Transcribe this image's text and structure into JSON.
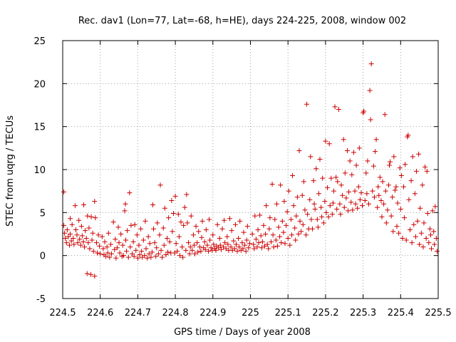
{
  "chart_data": {
    "type": "scatter",
    "title": "Rec. dav1 (Lon=77, Lat=-68, h=HE), days 224-225, 2008, window 002",
    "xlabel": "GPS time / Days of year 2008",
    "ylabel": "STEC from uqrg / TECUs",
    "xlim": [
      224.5,
      225.5
    ],
    "ylim": [
      -5,
      25
    ],
    "xticks": [
      "224.5",
      "224.6",
      "224.7",
      "224.8",
      "224.9",
      "225",
      "225.1",
      "225.2",
      "225.3",
      "225.4",
      "225.5"
    ],
    "yticks": [
      "-5",
      "0",
      "5",
      "10",
      "15",
      "20",
      "25"
    ],
    "grid": true,
    "marker": "+",
    "series_color": "#cc0000",
    "points": [
      [
        224.503,
        7.4
      ],
      [
        224.503,
        3.5
      ],
      [
        224.505,
        2.6
      ],
      [
        224.507,
        2.0
      ],
      [
        224.51,
        1.5
      ],
      [
        224.512,
        3.0
      ],
      [
        224.515,
        2.2
      ],
      [
        224.518,
        1.2
      ],
      [
        224.52,
        4.3
      ],
      [
        224.52,
        2.5
      ],
      [
        224.523,
        1.7
      ],
      [
        224.525,
        3.6
      ],
      [
        224.528,
        2.0
      ],
      [
        224.53,
        1.3
      ],
      [
        224.533,
        5.8
      ],
      [
        224.535,
        3.0
      ],
      [
        224.538,
        2.4
      ],
      [
        224.54,
        1.5
      ],
      [
        224.543,
        4.1
      ],
      [
        224.545,
        1.9
      ],
      [
        224.548,
        1.2
      ],
      [
        224.55,
        3.4
      ],
      [
        224.552,
        2.3
      ],
      [
        224.555,
        1.6
      ],
      [
        224.556,
        5.9
      ],
      [
        224.558,
        1.0
      ],
      [
        224.56,
        2.9
      ],
      [
        224.563,
        2.0
      ],
      [
        224.565,
        -2.1
      ],
      [
        224.566,
        4.6
      ],
      [
        224.568,
        1.5
      ],
      [
        224.57,
        3.2
      ],
      [
        224.572,
        0.8
      ],
      [
        224.575,
        -2.2
      ],
      [
        224.576,
        4.5
      ],
      [
        224.578,
        1.8
      ],
      [
        224.58,
        2.6
      ],
      [
        224.582,
        0.5
      ],
      [
        224.585,
        -2.4
      ],
      [
        224.585,
        6.3
      ],
      [
        224.587,
        4.4
      ],
      [
        224.59,
        1.5
      ],
      [
        224.592,
        0.3
      ],
      [
        224.595,
        2.4
      ],
      [
        224.598,
        1.1
      ],
      [
        224.6,
        0.2
      ],
      [
        224.605,
        2.2
      ],
      [
        224.608,
        0.8
      ],
      [
        224.61,
        0.1
      ],
      [
        224.612,
        1.6
      ],
      [
        224.615,
        -0.1
      ],
      [
        224.618,
        1.0
      ],
      [
        224.62,
        0.3
      ],
      [
        224.622,
        2.6
      ],
      [
        224.625,
        -0.2
      ],
      [
        224.628,
        1.3
      ],
      [
        224.63,
        0.2
      ],
      [
        224.635,
        3.9
      ],
      [
        224.638,
        0.7
      ],
      [
        224.64,
        1.9
      ],
      [
        224.642,
        -0.3
      ],
      [
        224.645,
        0.9
      ],
      [
        224.648,
        3.3
      ],
      [
        224.65,
        1.5
      ],
      [
        224.652,
        0.3
      ],
      [
        224.655,
        2.5
      ],
      [
        224.658,
        -0.1
      ],
      [
        224.66,
        1.2
      ],
      [
        224.662,
        0.0
      ],
      [
        224.665,
        5.2
      ],
      [
        224.667,
        6.0
      ],
      [
        224.668,
        1.8
      ],
      [
        224.67,
        0.5
      ],
      [
        224.672,
        2.9
      ],
      [
        224.675,
        -0.2
      ],
      [
        224.678,
        7.3
      ],
      [
        224.68,
        1.0
      ],
      [
        224.682,
        3.5
      ],
      [
        224.685,
        0.2
      ],
      [
        224.688,
        1.6
      ],
      [
        224.69,
        -0.1
      ],
      [
        224.692,
        3.6
      ],
      [
        224.695,
        0.6
      ],
      [
        224.698,
        2.4
      ],
      [
        224.7,
        -0.3
      ],
      [
        224.703,
        1.2
      ],
      [
        224.705,
        0.1
      ],
      [
        224.708,
        3.1
      ],
      [
        224.71,
        0.5
      ],
      [
        224.712,
        -0.2
      ],
      [
        224.715,
        1.8
      ],
      [
        224.718,
        0.0
      ],
      [
        224.72,
        4.0
      ],
      [
        224.722,
        0.8
      ],
      [
        224.725,
        -0.3
      ],
      [
        224.728,
        2.2
      ],
      [
        224.73,
        0.2
      ],
      [
        224.732,
        1.4
      ],
      [
        224.735,
        -0.2
      ],
      [
        224.738,
        0.4
      ],
      [
        224.74,
        5.9
      ],
      [
        224.742,
        3.1
      ],
      [
        224.745,
        1.5
      ],
      [
        224.748,
        -0.1
      ],
      [
        224.75,
        0.9
      ],
      [
        224.752,
        3.8
      ],
      [
        224.755,
        0.2
      ],
      [
        224.758,
        2.4
      ],
      [
        224.76,
        8.2
      ],
      [
        224.762,
        0.6
      ],
      [
        224.765,
        -0.2
      ],
      [
        224.768,
        3.2
      ],
      [
        224.77,
        1.2
      ],
      [
        224.772,
        5.5
      ],
      [
        224.775,
        0.1
      ],
      [
        224.778,
        2.0
      ],
      [
        224.78,
        0.4
      ],
      [
        224.782,
        4.4
      ],
      [
        224.785,
        1.6
      ],
      [
        224.788,
        0.3
      ],
      [
        224.79,
        6.4
      ],
      [
        224.792,
        2.8
      ],
      [
        224.795,
        4.9
      ],
      [
        224.798,
        0.3
      ],
      [
        224.8,
        6.9
      ],
      [
        224.802,
        1.4
      ],
      [
        224.805,
        0.5
      ],
      [
        224.808,
        4.8
      ],
      [
        224.81,
        2.2
      ],
      [
        224.812,
        0.0
      ],
      [
        224.815,
        3.9
      ],
      [
        224.818,
        1.0
      ],
      [
        224.82,
        -0.2
      ],
      [
        224.822,
        3.5
      ],
      [
        224.825,
        5.6
      ],
      [
        224.828,
        0.6
      ],
      [
        224.83,
        7.1
      ],
      [
        224.832,
        3.8
      ],
      [
        224.835,
        1.5
      ],
      [
        224.838,
        0.2
      ],
      [
        224.84,
        1.0
      ],
      [
        224.842,
        4.6
      ],
      [
        224.845,
        0.6
      ],
      [
        224.848,
        2.4
      ],
      [
        224.85,
        1.2
      ],
      [
        224.852,
        0.2
      ],
      [
        224.855,
        3.4
      ],
      [
        224.858,
        1.5
      ],
      [
        224.86,
        0.4
      ],
      [
        224.862,
        2.8
      ],
      [
        224.865,
        1.0
      ],
      [
        224.868,
        0.5
      ],
      [
        224.87,
        2.1
      ],
      [
        224.872,
        4.0
      ],
      [
        224.875,
        0.9
      ],
      [
        224.878,
        1.6
      ],
      [
        224.88,
        0.7
      ],
      [
        224.882,
        3.0
      ],
      [
        224.885,
        1.2
      ],
      [
        224.888,
        0.5
      ],
      [
        224.89,
        4.2
      ],
      [
        224.892,
        1.8
      ],
      [
        224.895,
        0.9
      ],
      [
        224.898,
        0.6
      ],
      [
        224.9,
        2.4
      ],
      [
        224.902,
        1.3
      ],
      [
        224.905,
        0.8
      ],
      [
        224.908,
        0.6
      ],
      [
        224.91,
        1.1
      ],
      [
        224.912,
        3.6
      ],
      [
        224.915,
        0.9
      ],
      [
        224.918,
        2.0
      ],
      [
        224.92,
        1.2
      ],
      [
        224.922,
        0.7
      ],
      [
        224.925,
        3.1
      ],
      [
        224.928,
        1.0
      ],
      [
        224.93,
        4.1
      ],
      [
        224.932,
        1.5
      ],
      [
        224.935,
        0.8
      ],
      [
        224.938,
        2.2
      ],
      [
        224.94,
        1.3
      ],
      [
        224.942,
        0.6
      ],
      [
        224.945,
        4.3
      ],
      [
        224.948,
        1.0
      ],
      [
        224.95,
        2.9
      ],
      [
        224.952,
        0.6
      ],
      [
        224.955,
        1.7
      ],
      [
        224.958,
        0.8
      ],
      [
        224.96,
        3.6
      ],
      [
        224.962,
        1.3
      ],
      [
        224.965,
        0.5
      ],
      [
        224.968,
        2.0
      ],
      [
        224.97,
        1.0
      ],
      [
        224.972,
        4.0
      ],
      [
        224.975,
        0.6
      ],
      [
        224.978,
        1.5
      ],
      [
        224.98,
        0.8
      ],
      [
        224.982,
        2.7
      ],
      [
        224.985,
        1.2
      ],
      [
        224.988,
        0.5
      ],
      [
        224.99,
        1.8
      ],
      [
        224.992,
        3.4
      ],
      [
        224.995,
        0.9
      ],
      [
        224.998,
        1.4
      ],
      [
        225.005,
        2.5
      ],
      [
        225.008,
        1.3
      ],
      [
        225.01,
        0.8
      ],
      [
        225.012,
        4.6
      ],
      [
        225.015,
        1.9
      ],
      [
        225.018,
        1.0
      ],
      [
        225.02,
        3.0
      ],
      [
        225.022,
        1.5
      ],
      [
        225.025,
        4.7
      ],
      [
        225.028,
        2.3
      ],
      [
        225.03,
        0.9
      ],
      [
        225.032,
        1.6
      ],
      [
        225.035,
        3.5
      ],
      [
        225.038,
        1.1
      ],
      [
        225.04,
        2.5
      ],
      [
        225.042,
        5.8
      ],
      [
        225.045,
        1.3
      ],
      [
        225.048,
        0.8
      ],
      [
        225.05,
        3.1
      ],
      [
        225.052,
        4.4
      ],
      [
        225.055,
        1.6
      ],
      [
        225.058,
        8.3
      ],
      [
        225.06,
        2.4
      ],
      [
        225.062,
        1.0
      ],
      [
        225.065,
        4.2
      ],
      [
        225.068,
        1.8
      ],
      [
        225.07,
        6.0
      ],
      [
        225.072,
        1.1
      ],
      [
        225.075,
        3.3
      ],
      [
        225.078,
        2.2
      ],
      [
        225.08,
        8.2
      ],
      [
        225.082,
        1.5
      ],
      [
        225.085,
        4.0
      ],
      [
        225.088,
        2.7
      ],
      [
        225.09,
        6.3
      ],
      [
        225.092,
        1.4
      ],
      [
        225.095,
        3.5
      ],
      [
        225.098,
        5.1
      ],
      [
        225.1,
        2.0
      ],
      [
        225.102,
        7.5
      ],
      [
        225.105,
        1.2
      ],
      [
        225.108,
        4.2
      ],
      [
        225.11,
        2.4
      ],
      [
        225.112,
        9.3
      ],
      [
        225.115,
        5.8
      ],
      [
        225.118,
        3.2
      ],
      [
        225.12,
        1.8
      ],
      [
        225.122,
        4.6
      ],
      [
        225.125,
        6.8
      ],
      [
        225.128,
        2.5
      ],
      [
        225.13,
        12.2
      ],
      [
        225.132,
        4.0
      ],
      [
        225.135,
        2.8
      ],
      [
        225.138,
        7.0
      ],
      [
        225.14,
        3.6
      ],
      [
        225.142,
        8.6
      ],
      [
        225.145,
        5.3
      ],
      [
        225.148,
        2.4
      ],
      [
        225.15,
        17.6
      ],
      [
        225.152,
        4.8
      ],
      [
        225.155,
        3.1
      ],
      [
        225.158,
        6.5
      ],
      [
        225.16,
        11.5
      ],
      [
        225.162,
        4.2
      ],
      [
        225.165,
        3.1
      ],
      [
        225.168,
        8.7
      ],
      [
        225.17,
        6.0
      ],
      [
        225.172,
        5.4
      ],
      [
        225.175,
        10.1
      ],
      [
        225.178,
        4.2
      ],
      [
        225.18,
        3.3
      ],
      [
        225.182,
        7.2
      ],
      [
        225.185,
        11.2
      ],
      [
        225.188,
        5.6
      ],
      [
        225.19,
        4.5
      ],
      [
        225.192,
        9.0
      ],
      [
        225.195,
        3.8
      ],
      [
        225.198,
        6.3
      ],
      [
        225.2,
        13.3
      ],
      [
        225.202,
        5.0
      ],
      [
        225.205,
        7.9
      ],
      [
        225.208,
        4.5
      ],
      [
        225.21,
        13.0
      ],
      [
        225.212,
        5.8
      ],
      [
        225.215,
        9.0
      ],
      [
        225.218,
        4.8
      ],
      [
        225.22,
        6.1
      ],
      [
        225.222,
        7.5
      ],
      [
        225.225,
        17.3
      ],
      [
        225.228,
        9.1
      ],
      [
        225.23,
        5.4
      ],
      [
        225.232,
        8.6
      ],
      [
        225.235,
        17.0
      ],
      [
        225.238,
        6.0
      ],
      [
        225.24,
        4.8
      ],
      [
        225.242,
        8.2
      ],
      [
        225.245,
        7.0
      ],
      [
        225.248,
        13.5
      ],
      [
        225.25,
        5.6
      ],
      [
        225.252,
        9.6
      ],
      [
        225.255,
        6.7
      ],
      [
        225.258,
        12.2
      ],
      [
        225.26,
        5.2
      ],
      [
        225.262,
        7.4
      ],
      [
        225.265,
        11.0
      ],
      [
        225.268,
        6.2
      ],
      [
        225.27,
        9.4
      ],
      [
        225.272,
        5.3
      ],
      [
        225.275,
        12.0
      ],
      [
        225.278,
        7.5
      ],
      [
        225.28,
        6.0
      ],
      [
        225.282,
        10.5
      ],
      [
        225.285,
        5.5
      ],
      [
        225.288,
        8.0
      ],
      [
        225.29,
        12.5
      ],
      [
        225.292,
        6.5
      ],
      [
        225.295,
        7.3
      ],
      [
        225.298,
        5.8
      ],
      [
        225.3,
        16.6
      ],
      [
        225.302,
        16.8
      ],
      [
        225.305,
        6.4
      ],
      [
        225.308,
        9.6
      ],
      [
        225.31,
        7.2
      ],
      [
        225.312,
        11.0
      ],
      [
        225.315,
        6.0
      ],
      [
        225.318,
        19.2
      ],
      [
        225.32,
        15.8
      ],
      [
        225.322,
        22.3
      ],
      [
        225.325,
        7.5
      ],
      [
        225.328,
        10.4
      ],
      [
        225.33,
        6.8
      ],
      [
        225.332,
        12.1
      ],
      [
        225.335,
        13.5
      ],
      [
        225.338,
        5.6
      ],
      [
        225.34,
        8.0
      ],
      [
        225.342,
        7.0
      ],
      [
        225.345,
        9.1
      ],
      [
        225.348,
        6.4
      ],
      [
        225.35,
        4.5
      ],
      [
        225.352,
        8.6
      ],
      [
        225.355,
        6.0
      ],
      [
        225.358,
        16.4
      ],
      [
        225.36,
        7.5
      ],
      [
        225.362,
        3.8
      ],
      [
        225.365,
        5.3
      ],
      [
        225.368,
        8.2
      ],
      [
        225.37,
        10.5
      ],
      [
        225.372,
        10.9
      ],
      [
        225.375,
        4.6
      ],
      [
        225.378,
        6.8
      ],
      [
        225.38,
        2.8
      ],
      [
        225.382,
        11.5
      ],
      [
        225.385,
        7.6
      ],
      [
        225.388,
        8.0
      ],
      [
        225.39,
        3.4
      ],
      [
        225.392,
        6.1
      ],
      [
        225.395,
        2.6
      ],
      [
        225.398,
        10.2
      ],
      [
        225.4,
        5.4
      ],
      [
        225.402,
        9.3
      ],
      [
        225.405,
        2.0
      ],
      [
        225.408,
        8.0
      ],
      [
        225.41,
        4.4
      ],
      [
        225.412,
        10.6
      ],
      [
        225.415,
        1.8
      ],
      [
        225.418,
        13.8
      ],
      [
        225.42,
        14.0
      ],
      [
        225.422,
        6.5
      ],
      [
        225.425,
        3.0
      ],
      [
        225.428,
        8.7
      ],
      [
        225.43,
        1.5
      ],
      [
        225.432,
        11.5
      ],
      [
        225.435,
        3.6
      ],
      [
        225.438,
        7.2
      ],
      [
        225.44,
        2.2
      ],
      [
        225.442,
        9.8
      ],
      [
        225.445,
        4.0
      ],
      [
        225.448,
        11.8
      ],
      [
        225.45,
        1.3
      ],
      [
        225.452,
        5.5
      ],
      [
        225.455,
        2.6
      ],
      [
        225.458,
        8.2
      ],
      [
        225.46,
        1.0
      ],
      [
        225.462,
        3.8
      ],
      [
        225.465,
        10.3
      ],
      [
        225.468,
        2.0
      ],
      [
        225.47,
        9.8
      ],
      [
        225.472,
        4.9
      ],
      [
        225.475,
        1.5
      ],
      [
        225.478,
        3.1
      ],
      [
        225.48,
        2.4
      ],
      [
        225.482,
        0.8
      ],
      [
        225.485,
        5.2
      ],
      [
        225.488,
        2.8
      ],
      [
        225.49,
        1.3
      ],
      [
        225.492,
        5.7
      ],
      [
        225.495,
        2.0
      ],
      [
        225.497,
        0.5
      ]
    ]
  }
}
